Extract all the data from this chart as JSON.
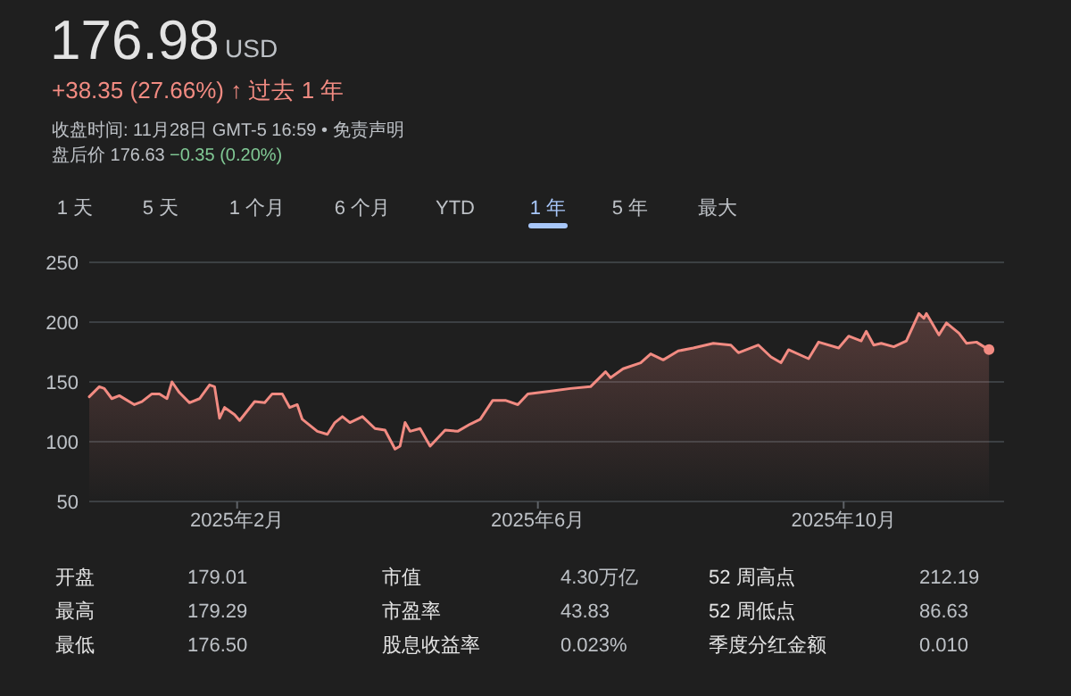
{
  "chart_data": {
    "type": "area",
    "title": "176.98",
    "annotations": [
      "USD",
      "+38.35 (27.66%) ↑ 过去 1 年",
      "收盘时间: 11月28日 GMT-5 16:59 • 免责声明",
      "盘后价 176.63",
      "−0.35 (0.20%)",
      "1 天",
      "5 天",
      "1 个月",
      "6 个月",
      "YTD",
      "1 年",
      "5 年",
      "最大",
      "开盘",
      "179.01",
      "市值",
      "4.30万亿",
      "52 周高点",
      "212.19",
      "最高",
      "179.29",
      "市盈率",
      "43.83",
      "52 周低点",
      "86.63",
      "最低",
      "176.50",
      "股息收益率",
      "0.023%",
      "季度分红金额",
      "0.010"
    ],
    "x": [
      "2024-12-04",
      "2024-12-08",
      "2024-12-10",
      "2024-12-13",
      "2024-12-16",
      "2024-12-22",
      "2024-12-25",
      "2024-12-29",
      "2025-01-01",
      "2025-01-04",
      "2025-01-06",
      "2025-01-09",
      "2025-01-13",
      "2025-01-17",
      "2025-01-21",
      "2025-01-23",
      "2025-01-25",
      "2025-01-27",
      "2025-01-31",
      "2025-02-02",
      "2025-02-08",
      "2025-02-12",
      "2025-02-15",
      "2025-02-19",
      "2025-02-22",
      "2025-02-25",
      "2025-02-27",
      "2025-03-02",
      "2025-03-05",
      "2025-03-09",
      "2025-03-12",
      "2025-03-15",
      "2025-03-18",
      "2025-03-23",
      "2025-03-28",
      "2025-04-01",
      "2025-04-05",
      "2025-04-07",
      "2025-04-09",
      "2025-04-11",
      "2025-04-15",
      "2025-04-19",
      "2025-04-25",
      "2025-04-30",
      "2025-05-05",
      "2025-05-09",
      "2025-05-14",
      "2025-05-19",
      "2025-05-24",
      "2025-05-28",
      "2025-06-07",
      "2025-06-14",
      "2025-06-22",
      "2025-06-28",
      "2025-06-30",
      "2025-07-05",
      "2025-07-12",
      "2025-07-16",
      "2025-07-21",
      "2025-07-27",
      "2025-08-02",
      "2025-08-10",
      "2025-08-17",
      "2025-08-20",
      "2025-08-28",
      "2025-09-02",
      "2025-09-06",
      "2025-09-09",
      "2025-09-17",
      "2025-09-21",
      "2025-09-29",
      "2025-10-03",
      "2025-10-08",
      "2025-10-10",
      "2025-10-13",
      "2025-10-16",
      "2025-10-21",
      "2025-10-26",
      "2025-10-31",
      "2025-11-02",
      "2025-11-03",
      "2025-11-08",
      "2025-11-11",
      "2025-11-16",
      "2025-11-19",
      "2025-11-23",
      "2025-11-26",
      "2025-11-28"
    ],
    "series": [
      {
        "color": "#f28b82",
        "values": [
          137.6,
          146,
          144.5,
          136,
          138.5,
          131,
          133.5,
          140,
          140,
          136,
          150,
          141,
          132.6,
          136,
          147.5,
          146,
          119.6,
          128.6,
          122.6,
          117.7,
          133.6,
          132.6,
          140,
          140,
          128.6,
          131,
          118.7,
          113.7,
          108.7,
          106.2,
          116,
          121,
          116,
          121,
          111,
          109.7,
          93.8,
          96.3,
          116,
          108.7,
          111,
          96.3,
          109.7,
          108.7,
          114.7,
          118.7,
          134.6,
          134.6,
          131,
          140,
          142.5,
          144.5,
          146,
          158.5,
          153.5,
          161,
          166,
          173.4,
          168.4,
          175.9,
          178.4,
          182.3,
          180.8,
          174.4,
          180.8,
          170.9,
          166,
          176.9,
          169.4,
          183.3,
          178.4,
          188.3,
          184.3,
          192.3,
          180.8,
          182.3,
          179.4,
          184.3,
          207.2,
          203.2,
          207.2,
          189.3,
          199.3,
          190.8,
          182.3,
          183.3,
          179.4,
          176.98
        ]
      }
    ],
    "xlim": [
      "2024-12-04",
      "2025-12-04"
    ],
    "xticks": [
      {
        "value": "2025-02-01",
        "label": "2025年2月"
      },
      {
        "value": "2025-06-01",
        "label": "2025年6月"
      },
      {
        "value": "2025-10-01",
        "label": "2025年10月"
      }
    ],
    "ylim": [
      50,
      250
    ],
    "yticks": [
      50,
      100,
      150,
      200,
      250
    ],
    "grid": "y"
  }
}
